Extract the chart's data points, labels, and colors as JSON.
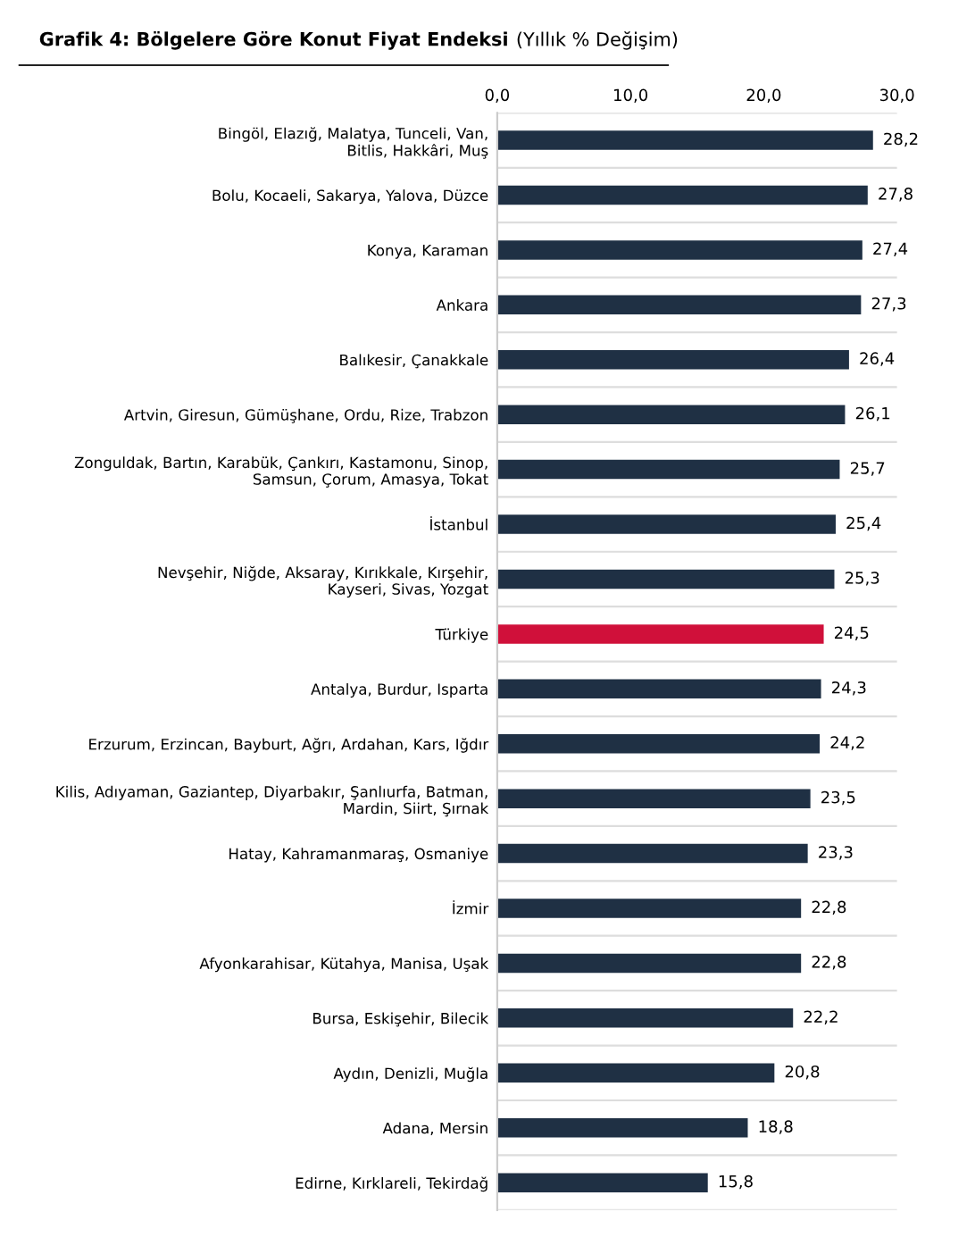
{
  "chart_data": {
    "type": "bar",
    "orientation": "horizontal",
    "title": "Grafik 4: Bölgelere Göre Konut Fiyat Endeksi",
    "subtitle": "(Yıllık % Değişim)",
    "categories": [
      "Bingöl, Elazığ, Malatya, Tunceli, Van,\nBitlis, Hakkâri, Muş",
      "Bolu, Kocaeli, Sakarya, Yalova, Düzce",
      "Konya, Karaman",
      "Ankara",
      "Balıkesir, Çanakkale",
      "Artvin, Giresun, Gümüşhane, Ordu, Rize, Trabzon",
      "Zonguldak, Bartın, Karabük, Çankırı, Kastamonu, Sinop,\nSamsun, Çorum, Amasya, Tokat",
      "İstanbul",
      "Nevşehir, Niğde, Aksaray, Kırıkkale, Kırşehir,\nKayseri, Sivas, Yozgat",
      "Türkiye",
      "Antalya, Burdur, Isparta",
      "Erzurum, Erzincan, Bayburt, Ağrı, Ardahan, Kars, Iğdır",
      "Kilis, Adıyaman, Gaziantep, Diyarbakır, Şanlıurfa, Batman,\nMardin, Siirt, Şırnak",
      "Hatay, Kahramanmaraş, Osmaniye",
      "İzmir",
      "Afyonkarahisar, Kütahya, Manisa, Uşak",
      "Bursa, Eskişehir, Bilecik",
      "Aydın, Denizli, Muğla",
      "Adana, Mersin",
      "Edirne, Kırklareli, Tekirdağ"
    ],
    "values": [
      28.2,
      27.8,
      27.4,
      27.3,
      26.4,
      26.1,
      25.7,
      25.4,
      25.3,
      24.5,
      24.3,
      24.2,
      23.5,
      23.3,
      22.8,
      22.8,
      22.2,
      20.8,
      18.8,
      15.8
    ],
    "value_labels": [
      "28,2",
      "27,8",
      "27,4",
      "27,3",
      "26,4",
      "26,1",
      "25,7",
      "25,4",
      "25,3",
      "24,5",
      "24,3",
      "24,2",
      "23,5",
      "23,3",
      "22,8",
      "22,8",
      "22,2",
      "20,8",
      "18,8",
      "15,8"
    ],
    "colors": [
      "#1f3044",
      "#1f3044",
      "#1f3044",
      "#1f3044",
      "#1f3044",
      "#1f3044",
      "#1f3044",
      "#1f3044",
      "#1f3044",
      "#d0103a",
      "#1f3044",
      "#1f3044",
      "#1f3044",
      "#1f3044",
      "#1f3044",
      "#1f3044",
      "#1f3044",
      "#1f3044",
      "#1f3044",
      "#1f3044"
    ],
    "xlim": [
      0,
      30
    ],
    "xticks": [
      {
        "value": 0,
        "label": "0,0"
      },
      {
        "value": 10,
        "label": "10,0"
      },
      {
        "value": 20,
        "label": "20,0"
      },
      {
        "value": 30,
        "label": "30,0"
      }
    ],
    "grid": "y",
    "legend": false
  }
}
